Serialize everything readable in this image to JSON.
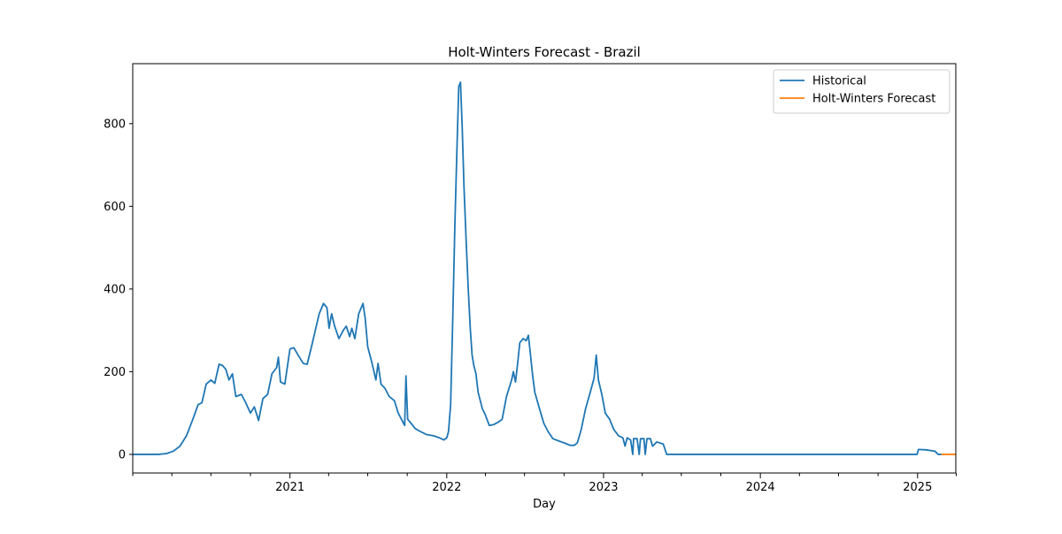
{
  "chart_data": {
    "type": "line",
    "title": "Holt-Winters Forecast - Brazil",
    "xlabel": "Day",
    "ylabel": "",
    "x_axis": {
      "type": "date",
      "range": [
        "2020-01-01",
        "2025-03-31"
      ],
      "ticks": [
        {
          "date": "2021-01-01",
          "label": "2021"
        },
        {
          "date": "2022-01-01",
          "label": "2022"
        },
        {
          "date": "2023-01-01",
          "label": "2023"
        },
        {
          "date": "2024-01-01",
          "label": "2024"
        },
        {
          "date": "2025-01-01",
          "label": "2025"
        }
      ],
      "minor_ticks": [
        "2020-01-01",
        "2020-04-01",
        "2020-07-01",
        "2020-10-01",
        "2021-04-01",
        "2021-07-01",
        "2021-10-01",
        "2022-04-01",
        "2022-07-01",
        "2022-10-01",
        "2023-04-01",
        "2023-07-01",
        "2023-10-01",
        "2024-04-01",
        "2024-07-01",
        "2024-10-01",
        "2025-04-01"
      ]
    },
    "ylim": [
      -45,
      945
    ],
    "yticks": [
      0,
      200,
      400,
      600,
      800
    ],
    "grid": false,
    "legend": {
      "placement": "top-right"
    },
    "series": [
      {
        "name": "Historical",
        "color": "#1f77b4",
        "points": [
          [
            "2020-01-01",
            0
          ],
          [
            "2020-03-01",
            0
          ],
          [
            "2020-03-20",
            2
          ],
          [
            "2020-04-05",
            8
          ],
          [
            "2020-04-20",
            20
          ],
          [
            "2020-05-05",
            45
          ],
          [
            "2020-05-20",
            85
          ],
          [
            "2020-06-01",
            120
          ],
          [
            "2020-06-10",
            125
          ],
          [
            "2020-06-20",
            170
          ],
          [
            "2020-07-01",
            180
          ],
          [
            "2020-07-10",
            172
          ],
          [
            "2020-07-20",
            218
          ],
          [
            "2020-07-28",
            215
          ],
          [
            "2020-08-05",
            205
          ],
          [
            "2020-08-12",
            180
          ],
          [
            "2020-08-20",
            195
          ],
          [
            "2020-08-28",
            140
          ],
          [
            "2020-09-10",
            145
          ],
          [
            "2020-09-20",
            125
          ],
          [
            "2020-10-01",
            100
          ],
          [
            "2020-10-10",
            115
          ],
          [
            "2020-10-20",
            82
          ],
          [
            "2020-10-30",
            135
          ],
          [
            "2020-11-10",
            145
          ],
          [
            "2020-11-20",
            195
          ],
          [
            "2020-12-01",
            210
          ],
          [
            "2020-12-05",
            235
          ],
          [
            "2020-12-10",
            175
          ],
          [
            "2020-12-20",
            170
          ],
          [
            "2021-01-01",
            255
          ],
          [
            "2021-01-10",
            258
          ],
          [
            "2021-01-20",
            240
          ],
          [
            "2021-02-01",
            220
          ],
          [
            "2021-02-10",
            218
          ],
          [
            "2021-02-20",
            260
          ],
          [
            "2021-03-01",
            300
          ],
          [
            "2021-03-10",
            340
          ],
          [
            "2021-03-20",
            365
          ],
          [
            "2021-03-28",
            355
          ],
          [
            "2021-04-02",
            305
          ],
          [
            "2021-04-08",
            340
          ],
          [
            "2021-04-15",
            310
          ],
          [
            "2021-04-25",
            280
          ],
          [
            "2021-05-05",
            300
          ],
          [
            "2021-05-12",
            310
          ],
          [
            "2021-05-20",
            285
          ],
          [
            "2021-05-25",
            305
          ],
          [
            "2021-06-01",
            280
          ],
          [
            "2021-06-10",
            340
          ],
          [
            "2021-06-20",
            365
          ],
          [
            "2021-06-25",
            330
          ],
          [
            "2021-07-01",
            260
          ],
          [
            "2021-07-10",
            225
          ],
          [
            "2021-07-20",
            180
          ],
          [
            "2021-07-25",
            220
          ],
          [
            "2021-08-01",
            170
          ],
          [
            "2021-08-10",
            160
          ],
          [
            "2021-08-20",
            140
          ],
          [
            "2021-09-01",
            130
          ],
          [
            "2021-09-10",
            100
          ],
          [
            "2021-09-20",
            80
          ],
          [
            "2021-09-25",
            70
          ],
          [
            "2021-09-28",
            190
          ],
          [
            "2021-10-02",
            85
          ],
          [
            "2021-10-10",
            75
          ],
          [
            "2021-10-20",
            62
          ],
          [
            "2021-11-01",
            55
          ],
          [
            "2021-11-15",
            48
          ],
          [
            "2021-12-01",
            45
          ],
          [
            "2021-12-15",
            40
          ],
          [
            "2021-12-25",
            35
          ],
          [
            "2022-01-01",
            40
          ],
          [
            "2022-01-05",
            55
          ],
          [
            "2022-01-10",
            120
          ],
          [
            "2022-01-15",
            330
          ],
          [
            "2022-01-20",
            560
          ],
          [
            "2022-01-25",
            750
          ],
          [
            "2022-01-29",
            890
          ],
          [
            "2022-02-02",
            900
          ],
          [
            "2022-02-06",
            790
          ],
          [
            "2022-02-10",
            650
          ],
          [
            "2022-02-15",
            520
          ],
          [
            "2022-02-20",
            400
          ],
          [
            "2022-02-25",
            300
          ],
          [
            "2022-03-01",
            240
          ],
          [
            "2022-03-05",
            215
          ],
          [
            "2022-03-10",
            195
          ],
          [
            "2022-03-15",
            150
          ],
          [
            "2022-03-20",
            130
          ],
          [
            "2022-03-25",
            110
          ],
          [
            "2022-04-01",
            95
          ],
          [
            "2022-04-10",
            70
          ],
          [
            "2022-04-20",
            72
          ],
          [
            "2022-05-01",
            78
          ],
          [
            "2022-05-10",
            85
          ],
          [
            "2022-05-20",
            140
          ],
          [
            "2022-06-01",
            180
          ],
          [
            "2022-06-05",
            200
          ],
          [
            "2022-06-10",
            175
          ],
          [
            "2022-06-15",
            220
          ],
          [
            "2022-06-20",
            270
          ],
          [
            "2022-06-28",
            280
          ],
          [
            "2022-07-05",
            275
          ],
          [
            "2022-07-10",
            288
          ],
          [
            "2022-07-15",
            240
          ],
          [
            "2022-07-20",
            190
          ],
          [
            "2022-07-25",
            150
          ],
          [
            "2022-08-05",
            110
          ],
          [
            "2022-08-15",
            75
          ],
          [
            "2022-08-25",
            55
          ],
          [
            "2022-09-05",
            38
          ],
          [
            "2022-09-20",
            32
          ],
          [
            "2022-10-01",
            28
          ],
          [
            "2022-10-15",
            22
          ],
          [
            "2022-10-25",
            22
          ],
          [
            "2022-11-01",
            28
          ],
          [
            "2022-11-10",
            60
          ],
          [
            "2022-11-20",
            110
          ],
          [
            "2022-12-01",
            150
          ],
          [
            "2022-12-10",
            185
          ],
          [
            "2022-12-15",
            240
          ],
          [
            "2022-12-20",
            180
          ],
          [
            "2022-12-28",
            145
          ],
          [
            "2023-01-05",
            100
          ],
          [
            "2023-01-15",
            85
          ],
          [
            "2023-01-25",
            60
          ],
          [
            "2023-02-05",
            45
          ],
          [
            "2023-02-15",
            40
          ],
          [
            "2023-02-20",
            20
          ],
          [
            "2023-02-25",
            40
          ],
          [
            "2023-03-05",
            35
          ],
          [
            "2023-03-10",
            0
          ],
          [
            "2023-03-12",
            38
          ],
          [
            "2023-03-20",
            38
          ],
          [
            "2023-03-25",
            0
          ],
          [
            "2023-03-28",
            38
          ],
          [
            "2023-04-05",
            38
          ],
          [
            "2023-04-08",
            0
          ],
          [
            "2023-04-12",
            38
          ],
          [
            "2023-04-20",
            38
          ],
          [
            "2023-04-25",
            20
          ],
          [
            "2023-05-05",
            30
          ],
          [
            "2023-05-20",
            25
          ],
          [
            "2023-05-28",
            0
          ],
          [
            "2024-12-31",
            0
          ],
          [
            "2025-01-03",
            12
          ],
          [
            "2025-01-20",
            11
          ],
          [
            "2025-02-10",
            8
          ],
          [
            "2025-02-18",
            0
          ],
          [
            "2025-02-25",
            0
          ]
        ]
      },
      {
        "name": "Holt-Winters Forecast",
        "color": "#ff7f0e",
        "points": [
          [
            "2025-02-25",
            0
          ],
          [
            "2025-03-31",
            0
          ]
        ]
      }
    ]
  }
}
